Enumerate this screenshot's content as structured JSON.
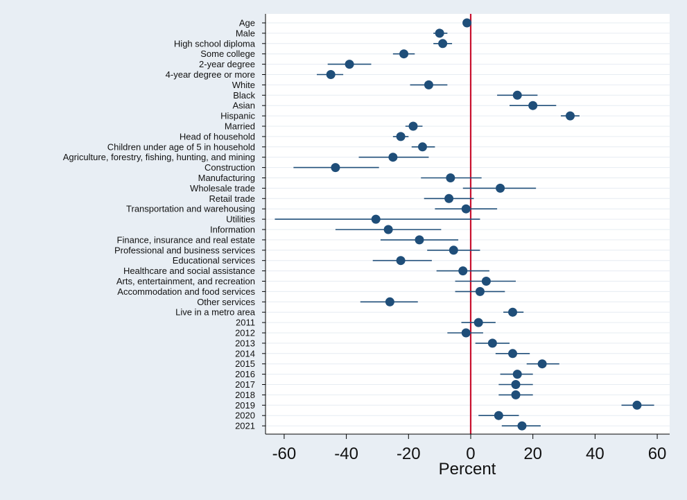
{
  "chart_data": {
    "type": "scatter",
    "subtype": "coefficient-plot",
    "title": "",
    "xlabel": "Percent",
    "ylabel": "",
    "xlim": [
      -66,
      64
    ],
    "xticks": [
      -60,
      -40,
      -20,
      0,
      20,
      40,
      60
    ],
    "xtick_labels": [
      "-60",
      "-40",
      "-20",
      "0",
      "20",
      "40",
      "60"
    ],
    "reference_line_x": 0,
    "grid": "horizontal",
    "colors": {
      "background": "#e8eef4",
      "plot_area": "#ffffff",
      "grid": "#e6ecf2",
      "marker": "#1f4e79",
      "reference_line": "#c8102e",
      "axis": "#000000"
    },
    "categories": [
      "Age",
      "Male",
      "High school diploma",
      "Some college",
      "2-year degree",
      "4-year degree or more",
      "White",
      "Black",
      "Asian",
      "Hispanic",
      "Married",
      "Head of household",
      "Children under age of 5 in household",
      "Agriculture, forestry, fishing, hunting, and mining",
      "Construction",
      "Manufacturing",
      "Wholesale trade",
      "Retail trade",
      "Transportation and warehousing",
      "Utilities",
      "Information",
      "Finance, insurance and real estate",
      "Professional and business services",
      "Educational services",
      "Healthcare and social assistance",
      "Arts, entertainment, and recreation",
      "Accommodation and food services",
      "Other services",
      "Live in a metro area",
      "2011",
      "2012",
      "2013",
      "2014",
      "2015",
      "2016",
      "2017",
      "2018",
      "2019",
      "2020",
      "2021"
    ],
    "estimates": [
      -1.2,
      -10,
      -9,
      -21.5,
      -39,
      -45,
      -13.5,
      15,
      20,
      32,
      -18.5,
      -22.5,
      -15.5,
      -25,
      -43.5,
      -6.5,
      9.5,
      -7,
      -1.5,
      -30.5,
      -26.5,
      -16.5,
      -5.5,
      -22.5,
      -2.5,
      5,
      3,
      -26,
      13.5,
      2.5,
      -1.5,
      7,
      13.5,
      23,
      15,
      14.5,
      14.5,
      53.5,
      9,
      16.5
    ],
    "ci_low": [
      -1.6,
      -12,
      -12,
      -25,
      -46,
      -49.5,
      -19.5,
      8.5,
      12.5,
      29,
      -21,
      -25,
      -19,
      -36,
      -57,
      -16,
      -2.5,
      -15,
      -11.5,
      -63,
      -43.5,
      -29,
      -14,
      -31.5,
      -11,
      -5,
      -5,
      -35.5,
      10.5,
      -3,
      -7.5,
      1.5,
      8,
      18,
      9.5,
      9,
      9,
      48.5,
      2.5,
      10
    ],
    "ci_high": [
      -0.8,
      -7.5,
      -6,
      -18,
      -32,
      -41,
      -7.5,
      21.5,
      27.5,
      35,
      -15.5,
      -20,
      -11.5,
      -13.5,
      -29.5,
      3.5,
      21,
      1,
      8.5,
      3,
      -9.5,
      -4,
      3,
      -12.5,
      6,
      14.5,
      11,
      -17,
      17,
      8,
      4,
      12.5,
      19,
      28.5,
      20,
      20,
      20,
      59,
      15.5,
      22.5
    ]
  }
}
